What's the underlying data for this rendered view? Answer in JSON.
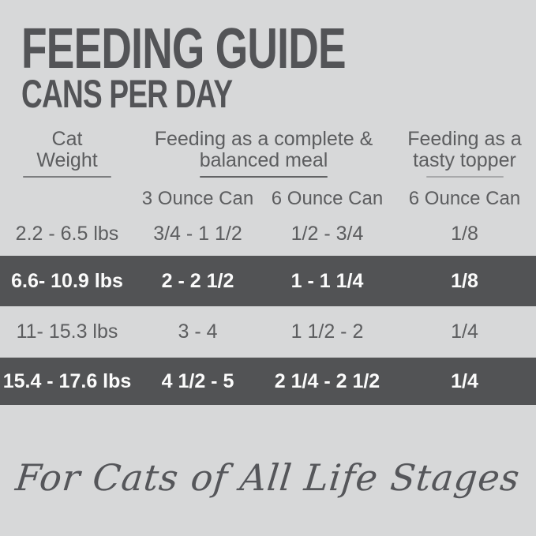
{
  "header": {
    "title": "FEEDING GUIDE",
    "subtitle": "CANS PER DAY"
  },
  "table": {
    "column_groups": [
      {
        "line1": "Cat",
        "line2": "Weight"
      },
      {
        "line1": "Feeding as a complete &",
        "line2": "balanced meal"
      },
      {
        "line1": "Feeding as a",
        "line2": "tasty topper"
      }
    ],
    "subheaders": [
      "3 Ounce Can",
      "6 Ounce Can",
      "6 Ounce Can"
    ],
    "rows": [
      {
        "weight": "2.2 - 6.5 lbs",
        "meal_3oz": "3/4 - 1 1/2",
        "meal_6oz": "1/2 - 3/4",
        "topper_6oz": "1/8",
        "highlighted": false
      },
      {
        "weight": "6.6- 10.9 lbs",
        "meal_3oz": "2 - 2 1/2",
        "meal_6oz": "1 - 1 1/4",
        "topper_6oz": "1/8",
        "highlighted": true
      },
      {
        "weight": "11- 15.3 lbs",
        "meal_3oz": "3 - 4",
        "meal_6oz": "1 1/2 - 2",
        "topper_6oz": "1/4",
        "highlighted": false
      },
      {
        "weight": "15.4 - 17.6 lbs",
        "meal_3oz": "4 1/2 - 5",
        "meal_6oz": "2 1/4 - 2 1/2",
        "topper_6oz": "1/4",
        "highlighted": true
      }
    ]
  },
  "footer": {
    "tagline": "For Cats of All Life Stages"
  },
  "colors": {
    "background": "#d7d8d9",
    "band": "#525355",
    "text": "#5c5d5f",
    "band_text": "#fbfbfb",
    "title_text": "#535457"
  },
  "chart_data": {
    "type": "table",
    "title": "FEEDING GUIDE",
    "subtitle": "CANS PER DAY",
    "column_groups": [
      "Cat Weight",
      "Feeding as a complete & balanced meal",
      "Feeding as a tasty topper"
    ],
    "columns": [
      "Cat Weight",
      "3 Ounce Can (complete meal)",
      "6 Ounce Can (complete meal)",
      "6 Ounce Can (tasty topper)"
    ],
    "rows": [
      [
        "2.2 - 6.5 lbs",
        "3/4 - 1 1/2",
        "1/2 - 3/4",
        "1/8"
      ],
      [
        "6.6- 10.9 lbs",
        "2 - 2 1/2",
        "1 - 1 1/4",
        "1/8"
      ],
      [
        "11- 15.3 lbs",
        "3 - 4",
        "1 1/2 - 2",
        "1/4"
      ],
      [
        "15.4 - 17.6 lbs",
        "4 1/2 - 5",
        "2 1/4 - 2 1/2",
        "1/4"
      ]
    ],
    "notes": "Rows 2 and 4 are highlighted with a dark gray full-width band and white bold text"
  }
}
